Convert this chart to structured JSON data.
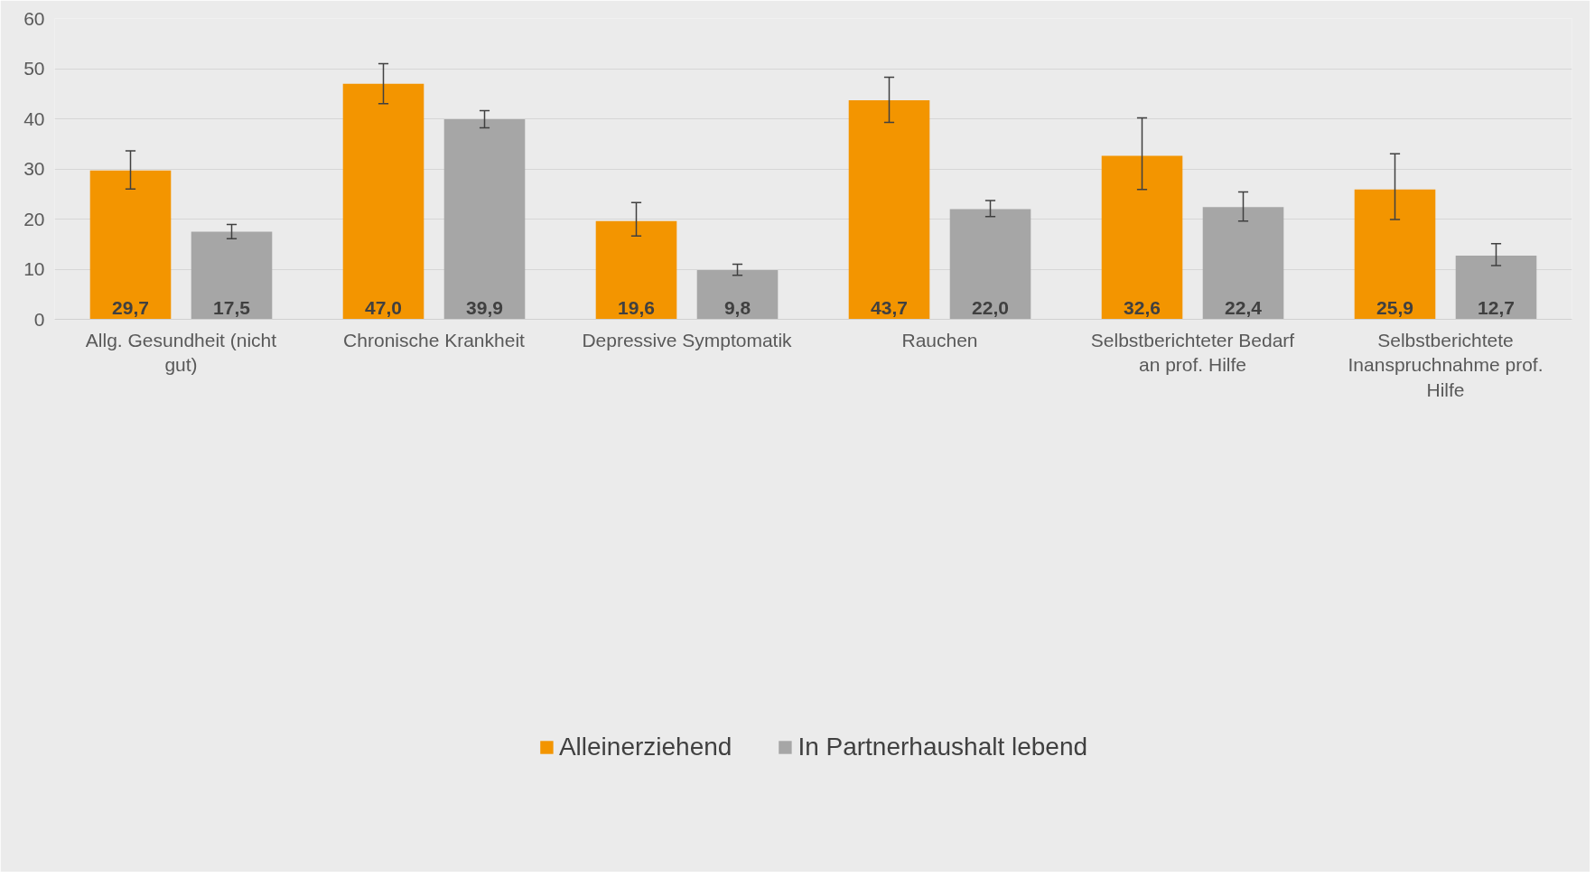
{
  "chart_data": {
    "type": "bar",
    "categories": [
      "Allg. Gesundheit (nicht gut)",
      "Chronische Krankheit",
      "Depressive Symptomatik",
      "Rauchen",
      "Selbstberichteter Bedarf an prof. Hilfe",
      "Selbstberichtete Inanspruchnahme prof. Hilfe"
    ],
    "series": [
      {
        "name": "Alleinerziehend",
        "color": "#f39500",
        "values": [
          29.7,
          47.0,
          19.6,
          43.7,
          32.6,
          25.9
        ],
        "value_labels": [
          "29,7",
          "47,0",
          "19,6",
          "43,7",
          "32,6",
          "25,9"
        ],
        "errors": [
          [
            26.0,
            33.6
          ],
          [
            43.0,
            51.0
          ],
          [
            16.6,
            23.3
          ],
          [
            39.3,
            48.3
          ],
          [
            25.9,
            40.2
          ],
          [
            19.9,
            33.0
          ]
        ]
      },
      {
        "name": "In Partnerhaushalt lebend",
        "color": "#a6a6a6",
        "values": [
          17.5,
          39.9,
          9.8,
          22.0,
          22.4,
          12.7
        ],
        "value_labels": [
          "17,5",
          "39,9",
          "9,8",
          "22,0",
          "22,4",
          "12,7"
        ],
        "errors": [
          [
            16.1,
            18.9
          ],
          [
            38.2,
            41.6
          ],
          [
            8.8,
            11.0
          ],
          [
            20.5,
            23.7
          ],
          [
            19.6,
            25.4
          ],
          [
            10.7,
            15.1
          ]
        ]
      }
    ],
    "ylim": [
      0,
      60
    ],
    "yticks": [
      0,
      10,
      20,
      30,
      40,
      50,
      60
    ],
    "grid": "y",
    "legend": "bottom"
  }
}
